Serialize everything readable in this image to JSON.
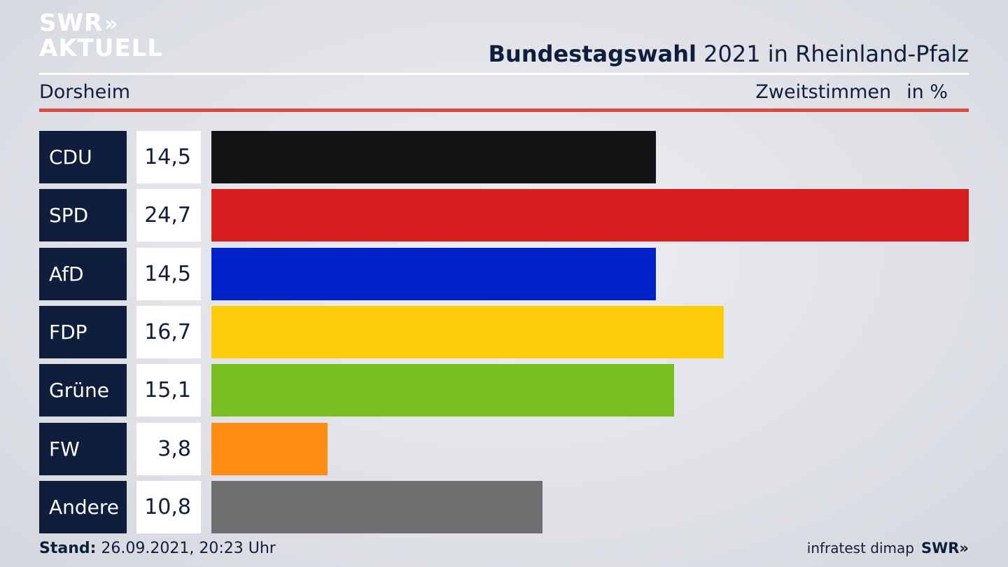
{
  "brand": {
    "logo_line1": "SWR",
    "logo_arrows": "»",
    "logo_line2": "AKTUELL"
  },
  "header": {
    "title_bold": "Bundestagswahl",
    "title_rest": " 2021 in Rheinland-Pfalz",
    "location": "Dorsheim",
    "metric": "Zweitstimmen",
    "unit": "in %"
  },
  "colors": {
    "accent_rule": "#d94a44",
    "label_bg": "#0f1e3c",
    "CDU": "#141414",
    "SPD": "#d81f1f",
    "AfD": "#0020c8",
    "FDP": "#ffcc0a",
    "Grüne": "#78be1e",
    "FW": "#ff8c14",
    "Andere": "#707072"
  },
  "chart_data": {
    "type": "bar",
    "orientation": "horizontal",
    "categories": [
      "CDU",
      "SPD",
      "AfD",
      "FDP",
      "Grüne",
      "FW",
      "Andere"
    ],
    "values": [
      14.5,
      24.7,
      14.5,
      16.7,
      15.1,
      3.8,
      10.8
    ],
    "value_labels": [
      "14,5",
      "24,7",
      "14,5",
      "16,7",
      "15,1",
      "3,8",
      "10,8"
    ],
    "bar_colors": [
      "#141414",
      "#d81f1f",
      "#0020c8",
      "#ffcc0a",
      "#78be1e",
      "#ff8c14",
      "#707072"
    ],
    "title": "Bundestagswahl 2021 in Rheinland-Pfalz",
    "subtitle": "Dorsheim",
    "ylabel": "Zweitstimmen in %",
    "xlim": [
      0,
      24.7
    ],
    "grid": false,
    "legend": "none"
  },
  "footer": {
    "stand_label": "Stand:",
    "stand_value": " 26.09.2021, 20:23 Uhr",
    "source": "infratest dimap",
    "source_brand": "SWR»"
  }
}
